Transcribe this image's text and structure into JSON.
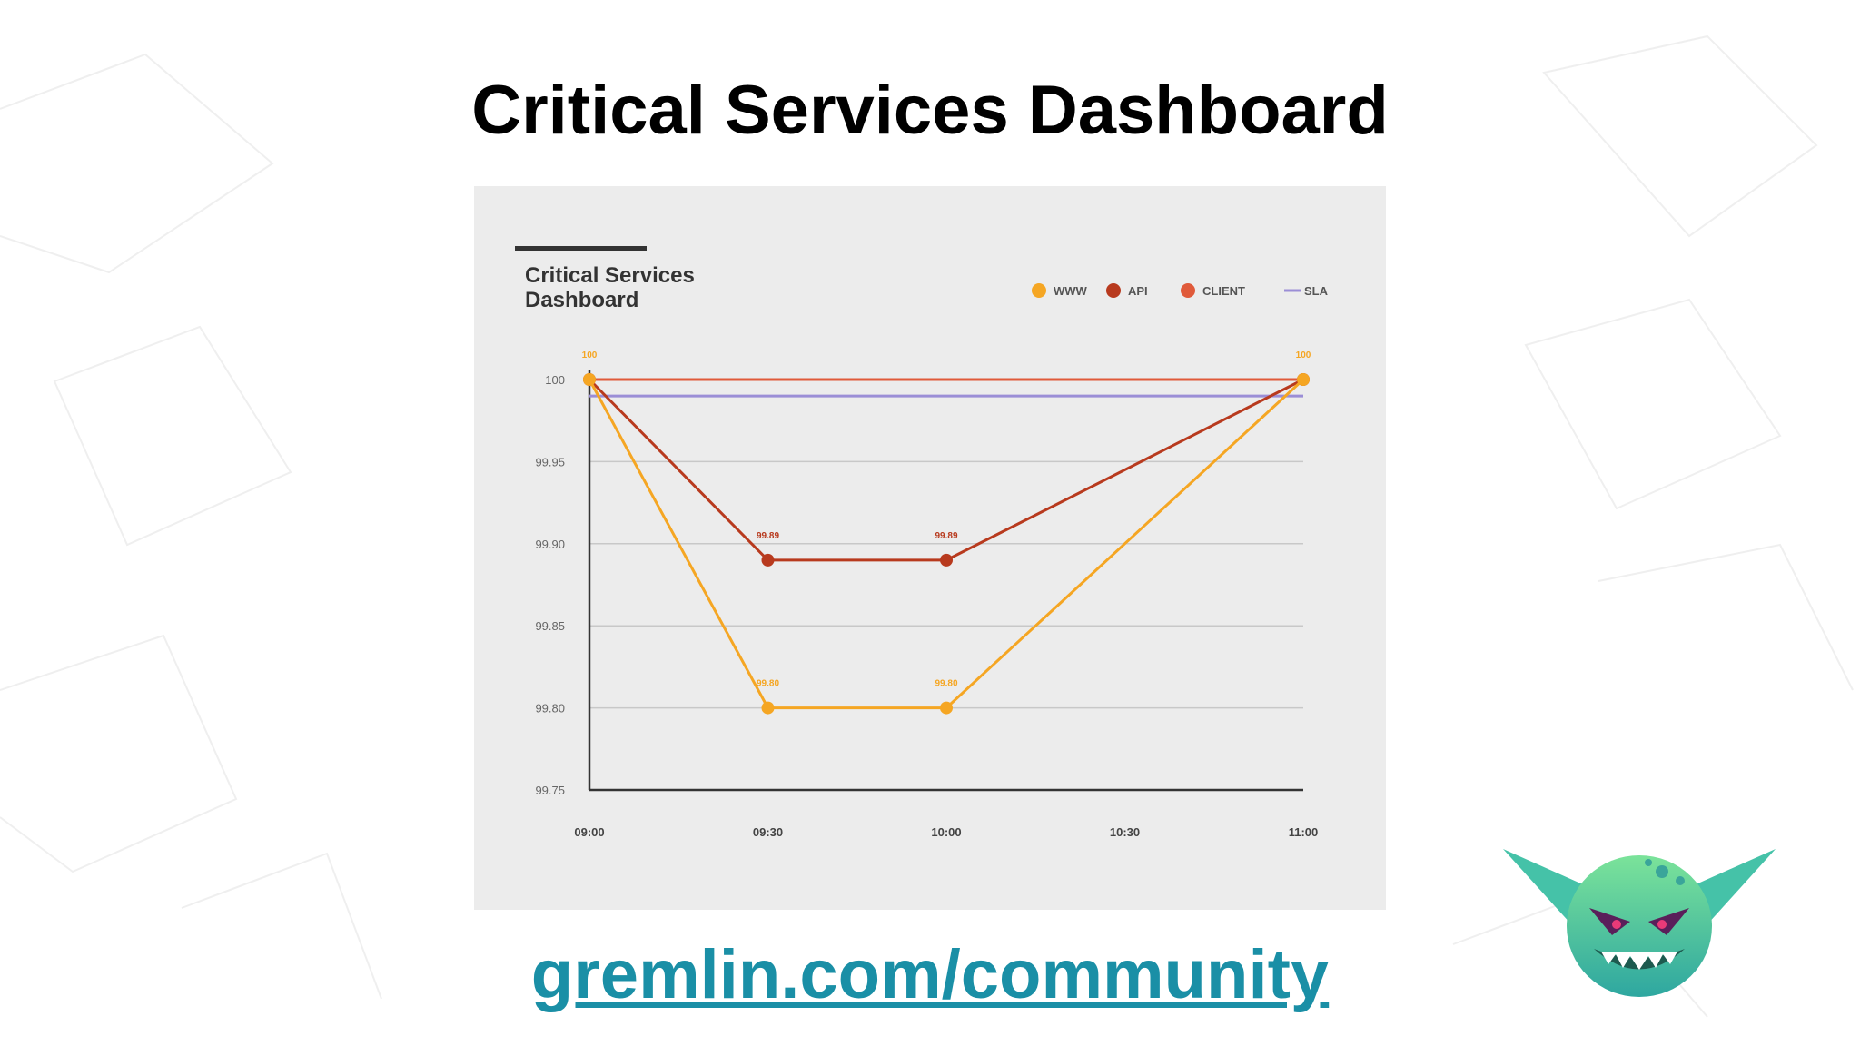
{
  "slide": {
    "title": "Critical Services Dashboard",
    "link": "gremlin.com/community"
  },
  "chart_data": {
    "type": "line",
    "title": "Critical Services Dashboard",
    "legend_position": "top-right",
    "x": [
      "09:00",
      "09:30",
      "10:00",
      "10:30",
      "11:00"
    ],
    "y_ticks": [
      "100",
      "99.95",
      "99.90",
      "99.85",
      "99.80",
      "99.75"
    ],
    "ylim": [
      99.75,
      100
    ],
    "grid": true,
    "series": [
      {
        "name": "WWW",
        "color": "#f5a623",
        "kind": "line",
        "points": [
          [
            0,
            100
          ],
          [
            1,
            99.8
          ],
          [
            2,
            99.8
          ],
          [
            4,
            100
          ]
        ],
        "labels": [
          "100",
          "99.80",
          "99.80",
          "100"
        ]
      },
      {
        "name": "API",
        "color": "#b83a1e",
        "kind": "line",
        "points": [
          [
            0,
            100
          ],
          [
            1,
            99.89
          ],
          [
            2,
            99.89
          ],
          [
            4,
            100
          ]
        ],
        "labels": [
          "",
          "99.89",
          "99.89",
          ""
        ]
      },
      {
        "name": "CLIENT",
        "color": "#e05a3a",
        "kind": "line",
        "points": [
          [
            0,
            100
          ],
          [
            4,
            100
          ]
        ],
        "labels": [
          "",
          ""
        ]
      },
      {
        "name": "SLA",
        "color": "#9b8ed6",
        "kind": "hline",
        "value": 99.99
      }
    ]
  },
  "icons": {
    "mascot": "gremlin-mascot-icon"
  }
}
